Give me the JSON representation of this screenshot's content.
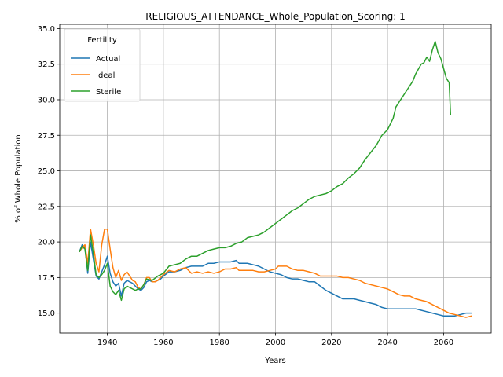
{
  "chart_data": {
    "type": "line",
    "title": "RELIGIOUS_ATTENDANCE_Whole_Population_Scoring: 1",
    "xlabel": "Years",
    "ylabel": "% of Whole Population",
    "xlim": [
      1923,
      2077
    ],
    "ylim": [
      13.6,
      35.3
    ],
    "xticks": [
      1940,
      1960,
      1980,
      2000,
      2020,
      2040,
      2060
    ],
    "yticks": [
      15.0,
      17.5,
      20.0,
      22.5,
      25.0,
      27.5,
      30.0,
      32.5,
      35.0
    ],
    "ytick_labels": [
      "15.0",
      "17.5",
      "20.0",
      "22.5",
      "25.0",
      "27.5",
      "30.0",
      "32.5",
      "35.0"
    ],
    "grid": true,
    "legend": {
      "title": "Fertility",
      "placement": "top-left"
    },
    "series": [
      {
        "name": "Actual",
        "color": "#1f77b4",
        "points": [
          [
            1930,
            19.3
          ],
          [
            1931,
            19.8
          ],
          [
            1932,
            19.6
          ],
          [
            1933,
            17.8
          ],
          [
            1934,
            20.0
          ],
          [
            1935,
            18.8
          ],
          [
            1936,
            17.6
          ],
          [
            1937,
            17.4
          ],
          [
            1938,
            17.9
          ],
          [
            1939,
            18.4
          ],
          [
            1940,
            19.0
          ],
          [
            1941,
            17.8
          ],
          [
            1942,
            17.2
          ],
          [
            1943,
            16.9
          ],
          [
            1944,
            17.1
          ],
          [
            1945,
            16.2
          ],
          [
            1946,
            17.1
          ],
          [
            1947,
            17.3
          ],
          [
            1948,
            17.2
          ],
          [
            1949,
            17.1
          ],
          [
            1950,
            16.9
          ],
          [
            1951,
            16.7
          ],
          [
            1952,
            16.6
          ],
          [
            1953,
            16.8
          ],
          [
            1954,
            17.2
          ],
          [
            1955,
            17.3
          ],
          [
            1956,
            17.2
          ],
          [
            1957,
            17.2
          ],
          [
            1958,
            17.3
          ],
          [
            1959,
            17.4
          ],
          [
            1960,
            17.6
          ],
          [
            1962,
            17.9
          ],
          [
            1964,
            17.9
          ],
          [
            1966,
            18.0
          ],
          [
            1968,
            18.2
          ],
          [
            1970,
            18.3
          ],
          [
            1972,
            18.3
          ],
          [
            1974,
            18.3
          ],
          [
            1976,
            18.5
          ],
          [
            1978,
            18.5
          ],
          [
            1980,
            18.6
          ],
          [
            1982,
            18.6
          ],
          [
            1984,
            18.6
          ],
          [
            1986,
            18.7
          ],
          [
            1987,
            18.5
          ],
          [
            1990,
            18.5
          ],
          [
            1992,
            18.4
          ],
          [
            1994,
            18.3
          ],
          [
            1996,
            18.1
          ],
          [
            1998,
            17.9
          ],
          [
            2000,
            17.8
          ],
          [
            2002,
            17.7
          ],
          [
            2004,
            17.5
          ],
          [
            2006,
            17.4
          ],
          [
            2008,
            17.4
          ],
          [
            2010,
            17.3
          ],
          [
            2012,
            17.2
          ],
          [
            2014,
            17.2
          ],
          [
            2016,
            16.9
          ],
          [
            2018,
            16.6
          ],
          [
            2020,
            16.4
          ],
          [
            2022,
            16.2
          ],
          [
            2024,
            16.0
          ],
          [
            2026,
            16.0
          ],
          [
            2028,
            16.0
          ],
          [
            2030,
            15.9
          ],
          [
            2032,
            15.8
          ],
          [
            2034,
            15.7
          ],
          [
            2036,
            15.6
          ],
          [
            2038,
            15.4
          ],
          [
            2040,
            15.3
          ],
          [
            2042,
            15.3
          ],
          [
            2044,
            15.3
          ],
          [
            2046,
            15.3
          ],
          [
            2048,
            15.3
          ],
          [
            2050,
            15.3
          ],
          [
            2052,
            15.2
          ],
          [
            2054,
            15.1
          ],
          [
            2056,
            15.0
          ],
          [
            2058,
            14.9
          ],
          [
            2060,
            14.8
          ],
          [
            2062,
            14.8
          ],
          [
            2064,
            14.8
          ],
          [
            2066,
            14.9
          ],
          [
            2068,
            15.0
          ],
          [
            2070,
            15.0
          ]
        ]
      },
      {
        "name": "Ideal",
        "color": "#ff7f0e",
        "points": [
          [
            1930,
            19.3
          ],
          [
            1931,
            19.6
          ],
          [
            1932,
            19.8
          ],
          [
            1933,
            18.5
          ],
          [
            1934,
            20.9
          ],
          [
            1935,
            19.8
          ],
          [
            1936,
            18.5
          ],
          [
            1937,
            17.9
          ],
          [
            1938,
            19.8
          ],
          [
            1939,
            20.9
          ],
          [
            1940,
            20.9
          ],
          [
            1941,
            19.5
          ],
          [
            1942,
            18.2
          ],
          [
            1943,
            17.5
          ],
          [
            1944,
            18.0
          ],
          [
            1945,
            17.3
          ],
          [
            1946,
            17.7
          ],
          [
            1947,
            17.9
          ],
          [
            1948,
            17.6
          ],
          [
            1949,
            17.3
          ],
          [
            1950,
            17.2
          ],
          [
            1951,
            16.8
          ],
          [
            1952,
            16.7
          ],
          [
            1953,
            17.0
          ],
          [
            1954,
            17.5
          ],
          [
            1955,
            17.5
          ],
          [
            1956,
            17.2
          ],
          [
            1957,
            17.2
          ],
          [
            1958,
            17.3
          ],
          [
            1959,
            17.5
          ],
          [
            1960,
            17.7
          ],
          [
            1962,
            18.0
          ],
          [
            1964,
            17.9
          ],
          [
            1966,
            18.1
          ],
          [
            1968,
            18.2
          ],
          [
            1970,
            17.8
          ],
          [
            1972,
            17.9
          ],
          [
            1974,
            17.8
          ],
          [
            1976,
            17.9
          ],
          [
            1978,
            17.8
          ],
          [
            1980,
            17.9
          ],
          [
            1982,
            18.1
          ],
          [
            1984,
            18.1
          ],
          [
            1986,
            18.2
          ],
          [
            1987,
            18.0
          ],
          [
            1990,
            18.0
          ],
          [
            1992,
            18.0
          ],
          [
            1994,
            17.9
          ],
          [
            1996,
            17.9
          ],
          [
            1998,
            18.0
          ],
          [
            2000,
            18.1
          ],
          [
            2001,
            18.3
          ],
          [
            2004,
            18.3
          ],
          [
            2006,
            18.1
          ],
          [
            2008,
            18.0
          ],
          [
            2010,
            18.0
          ],
          [
            2012,
            17.9
          ],
          [
            2014,
            17.8
          ],
          [
            2016,
            17.6
          ],
          [
            2018,
            17.6
          ],
          [
            2020,
            17.6
          ],
          [
            2022,
            17.6
          ],
          [
            2024,
            17.5
          ],
          [
            2026,
            17.5
          ],
          [
            2028,
            17.4
          ],
          [
            2030,
            17.3
          ],
          [
            2032,
            17.1
          ],
          [
            2034,
            17.0
          ],
          [
            2036,
            16.9
          ],
          [
            2038,
            16.8
          ],
          [
            2040,
            16.7
          ],
          [
            2042,
            16.5
          ],
          [
            2044,
            16.3
          ],
          [
            2046,
            16.2
          ],
          [
            2048,
            16.2
          ],
          [
            2050,
            16.0
          ],
          [
            2052,
            15.9
          ],
          [
            2054,
            15.8
          ],
          [
            2056,
            15.6
          ],
          [
            2058,
            15.4
          ],
          [
            2060,
            15.2
          ],
          [
            2062,
            15.0
          ],
          [
            2064,
            14.9
          ],
          [
            2066,
            14.8
          ],
          [
            2068,
            14.7
          ],
          [
            2070,
            14.8
          ]
        ]
      },
      {
        "name": "Sterile",
        "color": "#2ca02c",
        "points": [
          [
            1930,
            19.3
          ],
          [
            1931,
            19.7
          ],
          [
            1932,
            19.5
          ],
          [
            1933,
            18.0
          ],
          [
            1934,
            20.5
          ],
          [
            1935,
            19.2
          ],
          [
            1936,
            17.7
          ],
          [
            1937,
            17.5
          ],
          [
            1938,
            17.7
          ],
          [
            1939,
            18.0
          ],
          [
            1940,
            18.5
          ],
          [
            1941,
            16.9
          ],
          [
            1942,
            16.5
          ],
          [
            1943,
            16.3
          ],
          [
            1944,
            16.6
          ],
          [
            1945,
            15.9
          ],
          [
            1946,
            16.7
          ],
          [
            1947,
            16.9
          ],
          [
            1948,
            16.8
          ],
          [
            1949,
            16.7
          ],
          [
            1950,
            16.6
          ],
          [
            1951,
            16.7
          ],
          [
            1952,
            16.7
          ],
          [
            1953,
            17.0
          ],
          [
            1954,
            17.4
          ],
          [
            1956,
            17.3
          ],
          [
            1958,
            17.6
          ],
          [
            1960,
            17.8
          ],
          [
            1962,
            18.3
          ],
          [
            1964,
            18.4
          ],
          [
            1966,
            18.5
          ],
          [
            1968,
            18.8
          ],
          [
            1970,
            19.0
          ],
          [
            1972,
            19.0
          ],
          [
            1974,
            19.2
          ],
          [
            1976,
            19.4
          ],
          [
            1978,
            19.5
          ],
          [
            1980,
            19.6
          ],
          [
            1982,
            19.6
          ],
          [
            1984,
            19.7
          ],
          [
            1986,
            19.9
          ],
          [
            1988,
            20.0
          ],
          [
            1990,
            20.3
          ],
          [
            1992,
            20.4
          ],
          [
            1994,
            20.5
          ],
          [
            1996,
            20.7
          ],
          [
            1998,
            21.0
          ],
          [
            2000,
            21.3
          ],
          [
            2002,
            21.6
          ],
          [
            2004,
            21.9
          ],
          [
            2006,
            22.2
          ],
          [
            2008,
            22.4
          ],
          [
            2010,
            22.7
          ],
          [
            2012,
            23.0
          ],
          [
            2014,
            23.2
          ],
          [
            2016,
            23.3
          ],
          [
            2018,
            23.4
          ],
          [
            2020,
            23.6
          ],
          [
            2022,
            23.9
          ],
          [
            2024,
            24.1
          ],
          [
            2026,
            24.5
          ],
          [
            2028,
            24.8
          ],
          [
            2030,
            25.2
          ],
          [
            2032,
            25.8
          ],
          [
            2034,
            26.3
          ],
          [
            2036,
            26.8
          ],
          [
            2038,
            27.5
          ],
          [
            2040,
            27.9
          ],
          [
            2042,
            28.7
          ],
          [
            2043,
            29.5
          ],
          [
            2044,
            29.8
          ],
          [
            2046,
            30.4
          ],
          [
            2048,
            31.0
          ],
          [
            2049,
            31.3
          ],
          [
            2050,
            31.8
          ],
          [
            2052,
            32.5
          ],
          [
            2053,
            32.6
          ],
          [
            2054,
            33.0
          ],
          [
            2055,
            32.7
          ],
          [
            2056,
            33.5
          ],
          [
            2057,
            34.1
          ],
          [
            2058,
            33.3
          ],
          [
            2059,
            32.9
          ],
          [
            2060,
            32.2
          ],
          [
            2061,
            31.5
          ],
          [
            2062,
            31.2
          ],
          [
            2062.5,
            28.9
          ]
        ]
      }
    ]
  }
}
